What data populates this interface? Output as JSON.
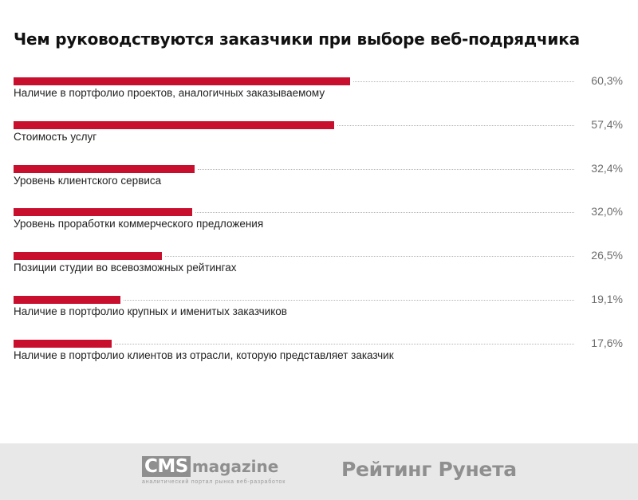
{
  "chart_data": {
    "type": "bar",
    "orientation": "horizontal",
    "title": "Чем руководствуются заказчики при выборе веб-подрядчика",
    "categories": [
      "Наличие в портфолио проектов, аналогичных заказываемому",
      "Стоимость услуг",
      "Уровень клиентского сервиса",
      "Уровень проработки коммерческого предложения",
      "Позиции студии во всевозможных рейтингах",
      "Наличие в портфолио крупных и именитых заказчиков",
      "Наличие в портфолио клиентов из отрасли, которую представляет заказчик"
    ],
    "values": [
      60.3,
      57.4,
      32.4,
      32.0,
      26.5,
      19.1,
      17.6
    ],
    "value_labels": [
      "60,3%",
      "57,4%",
      "32,4%",
      "32,0%",
      "26,5%",
      "19,1%",
      "17,6%"
    ],
    "xlim": [
      0,
      100
    ],
    "grid": false,
    "legend": "none",
    "bar_color": "#c8102e"
  },
  "footer": {
    "cms_brand": "CMS",
    "cms_suffix": "magazine",
    "cms_tagline": "аналитический портал рынка веб-разработок",
    "rating_text": "Рейтинг Рунета"
  }
}
